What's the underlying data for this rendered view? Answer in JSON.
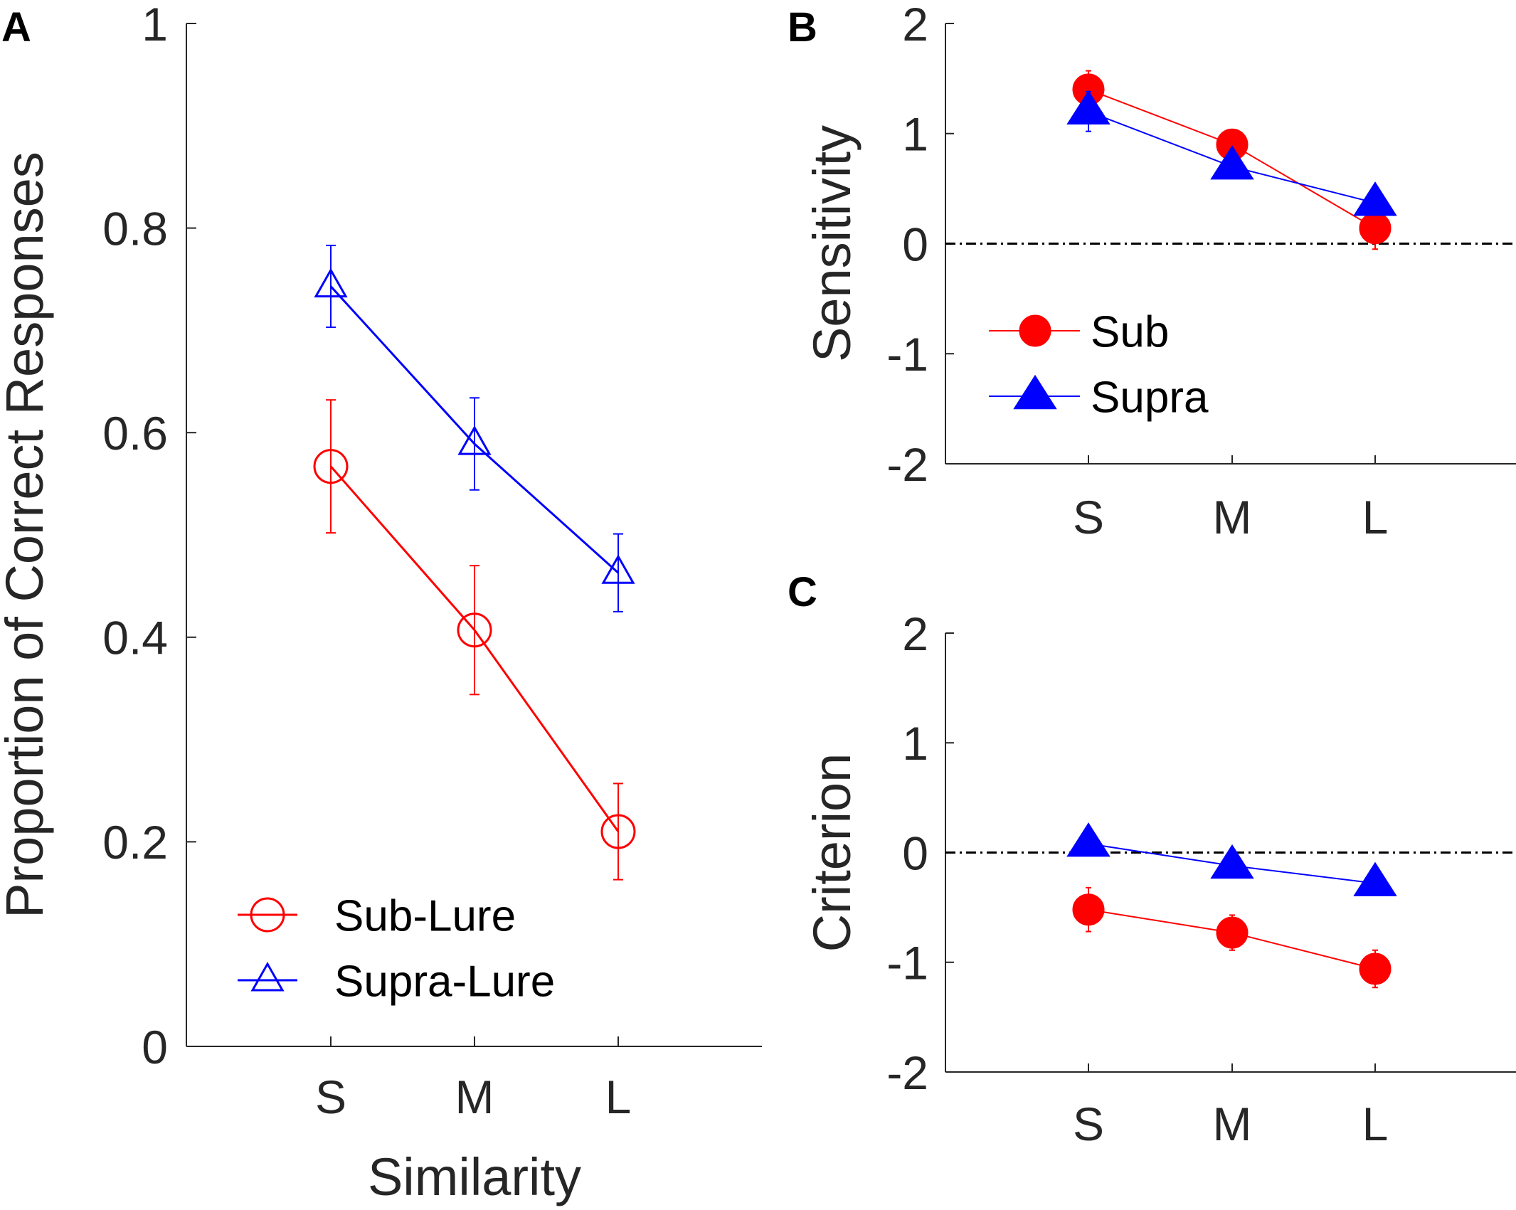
{
  "colors": {
    "sub": "#ff0000",
    "supra": "#0000ff",
    "axis": "#262626",
    "reference_line": "#000000"
  },
  "chart_data": [
    {
      "panel": "A",
      "type": "line",
      "marker_style": "open",
      "categories": [
        "S",
        "M",
        "L"
      ],
      "xlabel": "Similarity",
      "ylabel": "Proportion of Correct Responses",
      "ylim": [
        0,
        1
      ],
      "yticks": [
        0,
        0.2,
        0.4,
        0.6,
        0.8,
        1
      ],
      "ytick_labels": [
        "0",
        "0.2",
        "0.4",
        "0.6",
        "0.8",
        "1"
      ],
      "reference_line": null,
      "legend_position": "bottom-left",
      "series": [
        {
          "name": "Sub-Lure",
          "color_key": "sub",
          "marker": "circle",
          "values": [
            0.567,
            0.407,
            0.21
          ],
          "errors": [
            0.065,
            0.063,
            0.047
          ]
        },
        {
          "name": "Supra-Lure",
          "color_key": "supra",
          "marker": "triangle",
          "values": [
            0.743,
            0.589,
            0.463
          ],
          "errors": [
            0.04,
            0.045,
            0.038
          ]
        }
      ]
    },
    {
      "panel": "B",
      "type": "line",
      "marker_style": "filled",
      "categories": [
        "S",
        "M",
        "L"
      ],
      "xlabel": "",
      "ylabel": "Sensitivity",
      "ylim": [
        -2,
        2
      ],
      "yticks": [
        -2,
        -1,
        0,
        1,
        2
      ],
      "ytick_labels": [
        "-2",
        "-1",
        "0",
        "1",
        "2"
      ],
      "reference_line": 0,
      "legend_position": "left-middle",
      "series": [
        {
          "name": "Sub",
          "color_key": "sub",
          "marker": "circle",
          "values": [
            1.4,
            0.9,
            0.14
          ],
          "errors": [
            0.17,
            0.11,
            0.19
          ]
        },
        {
          "name": "Supra",
          "color_key": "supra",
          "marker": "triangle",
          "values": [
            1.2,
            0.7,
            0.37
          ],
          "errors": [
            0.18,
            0.1,
            0.1
          ]
        }
      ]
    },
    {
      "panel": "C",
      "type": "line",
      "marker_style": "filled",
      "categories": [
        "S",
        "M",
        "L"
      ],
      "xlabel": "",
      "ylabel": "Criterion",
      "ylim": [
        -2,
        2
      ],
      "yticks": [
        -2,
        -1,
        0,
        1,
        2
      ],
      "ytick_labels": [
        "-2",
        "-1",
        "0",
        "1",
        "2"
      ],
      "reference_line": 0,
      "legend_position": "none",
      "series": [
        {
          "name": "Sub",
          "color_key": "sub",
          "marker": "circle",
          "values": [
            -0.52,
            -0.73,
            -1.06
          ],
          "errors": [
            0.2,
            0.16,
            0.17
          ]
        },
        {
          "name": "Supra",
          "color_key": "supra",
          "marker": "triangle",
          "values": [
            0.08,
            -0.12,
            -0.28
          ],
          "errors": [
            0.07,
            0.07,
            0.05
          ]
        }
      ]
    }
  ]
}
